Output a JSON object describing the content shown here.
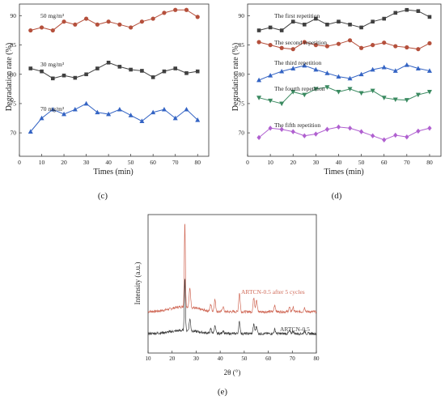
{
  "chart_data": [
    {
      "type": "line",
      "panel_label": "(c)",
      "xlabel": "Times (min)",
      "ylabel": "Degradation rate (%)",
      "xlim": [
        0,
        85
      ],
      "ylim": [
        66,
        92
      ],
      "x_ticks": [
        0,
        10,
        20,
        30,
        40,
        50,
        60,
        70,
        80
      ],
      "y_ticks": [
        70,
        75,
        80,
        85,
        90
      ],
      "x": [
        5,
        10,
        15,
        20,
        25,
        30,
        35,
        40,
        45,
        50,
        55,
        60,
        65,
        70,
        75,
        80
      ],
      "grid": false,
      "legend": "none",
      "series": [
        {
          "name": "50 mg/m³",
          "color": "#b5503c",
          "marker": "circle",
          "values": [
            87.5,
            88.0,
            87.5,
            89.0,
            88.5,
            89.5,
            88.5,
            89.0,
            88.5,
            88.0,
            89.0,
            89.5,
            90.5,
            91.0,
            91.0,
            89.8
          ]
        },
        {
          "name": "30 mg/m³",
          "color": "#404040",
          "marker": "square",
          "values": [
            81.0,
            80.5,
            79.3,
            79.8,
            79.4,
            80.0,
            81.0,
            82.0,
            81.3,
            80.8,
            80.6,
            79.5,
            80.5,
            81.0,
            80.2,
            80.5
          ]
        },
        {
          "name": "70 mg/m³",
          "color": "#3464c4",
          "marker": "triangle",
          "values": [
            70.2,
            72.5,
            74.0,
            73.2,
            74.0,
            75.0,
            73.5,
            73.2,
            74.0,
            73.0,
            72.0,
            73.5,
            74.0,
            72.5,
            74.0,
            72.2
          ]
        }
      ]
    },
    {
      "type": "line",
      "panel_label": "(d)",
      "xlabel": "Times (min)",
      "ylabel": "Degradation rate (%)",
      "xlim": [
        0,
        85
      ],
      "ylim": [
        66,
        92
      ],
      "x_ticks": [
        0,
        10,
        20,
        30,
        40,
        50,
        60,
        70,
        80
      ],
      "y_ticks": [
        70,
        75,
        80,
        85,
        90
      ],
      "x": [
        5,
        10,
        15,
        20,
        25,
        30,
        35,
        40,
        45,
        50,
        55,
        60,
        65,
        70,
        75,
        80
      ],
      "grid": false,
      "legend": "none",
      "series": [
        {
          "name": "The first repetition",
          "color": "#404040",
          "marker": "square",
          "values": [
            87.5,
            88.0,
            87.5,
            89.0,
            88.5,
            89.5,
            88.5,
            89.0,
            88.5,
            88.0,
            89.0,
            89.5,
            90.5,
            91.0,
            90.8,
            89.8
          ]
        },
        {
          "name": "The second repetition",
          "color": "#b5503c",
          "marker": "circle",
          "values": [
            85.5,
            85.0,
            84.5,
            84.3,
            85.5,
            85.0,
            84.8,
            85.2,
            85.8,
            84.5,
            85.0,
            85.4,
            84.8,
            84.6,
            84.3,
            85.3
          ]
        },
        {
          "name": "The third repetition",
          "color": "#3464c4",
          "marker": "triangle",
          "values": [
            79.0,
            79.8,
            80.5,
            81.0,
            81.5,
            80.8,
            80.2,
            79.6,
            79.3,
            80.0,
            80.8,
            81.2,
            80.6,
            81.6,
            81.0,
            80.6
          ]
        },
        {
          "name": "The fourth repetition",
          "color": "#3a8a60",
          "marker": "triangle-down",
          "values": [
            76.0,
            75.5,
            75.0,
            77.0,
            76.5,
            77.5,
            77.8,
            77.0,
            77.5,
            76.8,
            77.2,
            76.0,
            75.7,
            75.6,
            76.5,
            77.0
          ]
        },
        {
          "name": "The fifth repetition",
          "color": "#b060d0",
          "marker": "diamond",
          "values": [
            69.2,
            70.8,
            70.6,
            70.2,
            69.5,
            69.8,
            70.6,
            71.0,
            70.8,
            70.2,
            69.5,
            68.8,
            69.6,
            69.3,
            70.3,
            70.8
          ]
        }
      ]
    },
    {
      "type": "line",
      "panel_label": "(e)",
      "xlabel": "2θ (°)",
      "ylabel": "Intensity (a.u.)",
      "xlim": [
        10,
        80
      ],
      "x_ticks": [
        10,
        20,
        30,
        40,
        50,
        60,
        70,
        80
      ],
      "grid": false,
      "legend": "none",
      "peaks": [
        {
          "two_theta": 25.3,
          "intensity": 100
        },
        {
          "two_theta": 27.4,
          "intensity": 22
        },
        {
          "two_theta": 36.1,
          "intensity": 8
        },
        {
          "two_theta": 37.8,
          "intensity": 14
        },
        {
          "two_theta": 41.2,
          "intensity": 6
        },
        {
          "two_theta": 48.0,
          "intensity": 22
        },
        {
          "two_theta": 54.0,
          "intensity": 17
        },
        {
          "two_theta": 55.1,
          "intensity": 14
        },
        {
          "two_theta": 62.7,
          "intensity": 8
        },
        {
          "two_theta": 68.8,
          "intensity": 5
        },
        {
          "two_theta": 70.3,
          "intensity": 5
        },
        {
          "two_theta": 75.1,
          "intensity": 5
        }
      ],
      "series": [
        {
          "name": "ARTCN-0.5  after 5 cycles",
          "color": "#d06a58",
          "scale": 1.0
        },
        {
          "name": "ARTCN-0.5",
          "color": "#404040",
          "scale": 0.62
        }
      ]
    }
  ]
}
